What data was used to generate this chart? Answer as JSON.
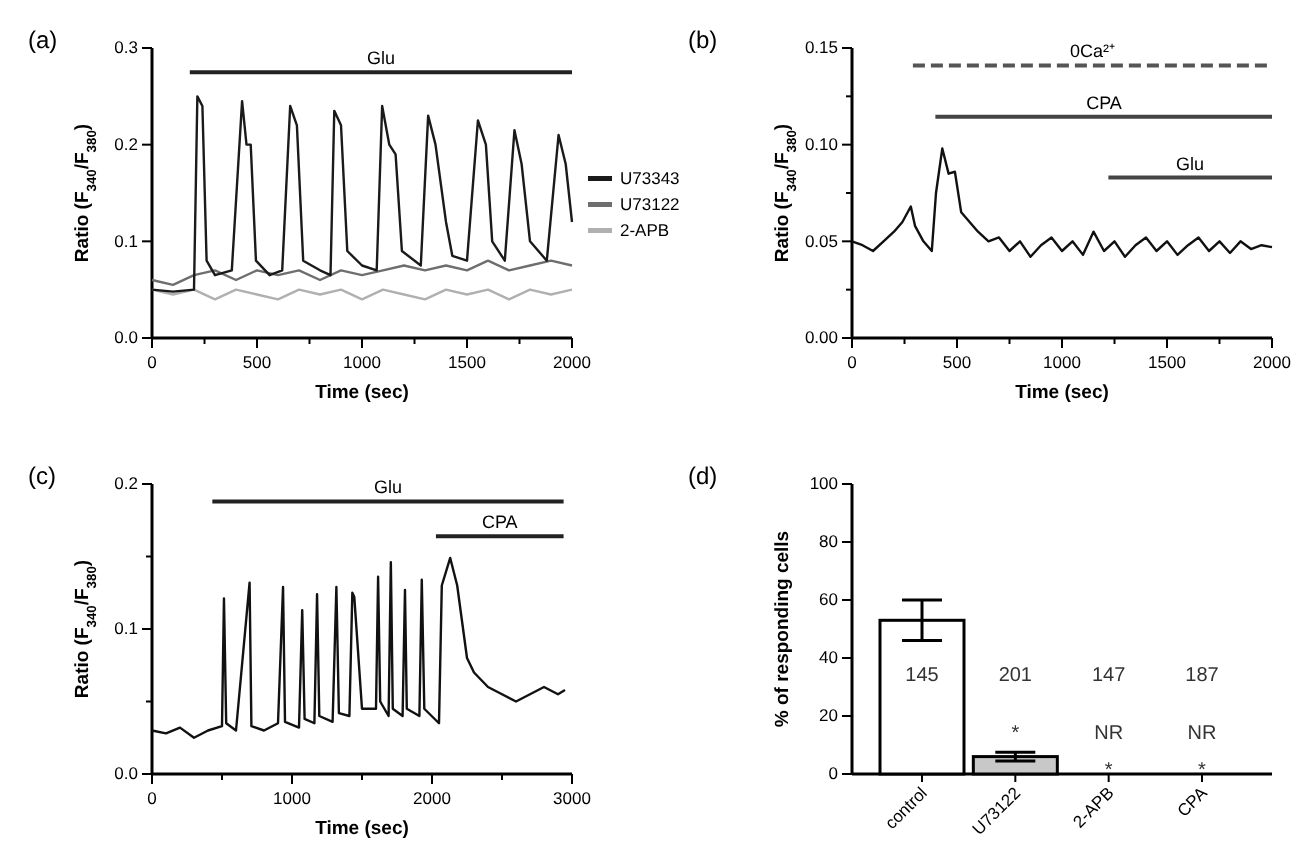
{
  "chart_data": [
    {
      "type": "line",
      "title": "(a)",
      "xlabel": "Time (sec)",
      "ylabel": "Ratio (F$_{340}$/F$_{380}$)",
      "xlim": [
        0,
        2000
      ],
      "ylim": [
        0,
        0.3
      ],
      "xticks": [
        0,
        {
          "value": 250,
          "label": null
        },
        500,
        {
          "value": 750,
          "label": null
        },
        1000,
        {
          "value": 1250,
          "label": null
        },
        1500,
        {
          "value": 1750,
          "label": null
        },
        2000
      ],
      "yticks": [
        {
          "value": 0,
          "label": "0.0"
        },
        0.1,
        0.2,
        0.3
      ],
      "legend": "right",
      "marker": "none",
      "line_style": "solid",
      "annotations": [
        {
          "text": "Glu",
          "x": 1090,
          "y": 0.275
        }
      ],
      "series": [
        {
          "type": "line",
          "color": "#222222",
          "x": [
            180,
            2000
          ],
          "values": [
            0.275,
            0.275
          ]
        },
        {
          "name": "U73343",
          "color": "#1a1a1a",
          "x": [
            0,
            100,
            200,
            216,
            240,
            260,
            300,
            380,
            429,
            450,
            470,
            495,
            560,
            620,
            658,
            690,
            720,
            800,
            850,
            868,
            900,
            930,
            1000,
            1070,
            1096,
            1130,
            1160,
            1190,
            1280,
            1315,
            1350,
            1400,
            1430,
            1500,
            1552,
            1590,
            1620,
            1680,
            1726,
            1760,
            1800,
            1880,
            1936,
            1970,
            2000
          ],
          "values": [
            0.05,
            0.048,
            0.05,
            0.25,
            0.24,
            0.08,
            0.065,
            0.07,
            0.245,
            0.2,
            0.2,
            0.08,
            0.065,
            0.07,
            0.24,
            0.22,
            0.08,
            0.07,
            0.065,
            0.235,
            0.22,
            0.09,
            0.075,
            0.07,
            0.24,
            0.2,
            0.19,
            0.09,
            0.075,
            0.23,
            0.2,
            0.12,
            0.085,
            0.08,
            0.225,
            0.2,
            0.1,
            0.08,
            0.215,
            0.18,
            0.1,
            0.08,
            0.21,
            0.18,
            0.12
          ]
        },
        {
          "name": "U73122",
          "color": "#6e6e6e",
          "x": [
            0,
            100,
            200,
            300,
            400,
            500,
            600,
            700,
            800,
            900,
            1000,
            1100,
            1200,
            1300,
            1400,
            1500,
            1600,
            1700,
            1800,
            1900,
            2000
          ],
          "values": [
            0.06,
            0.055,
            0.065,
            0.07,
            0.06,
            0.07,
            0.065,
            0.07,
            0.06,
            0.07,
            0.065,
            0.07,
            0.075,
            0.07,
            0.075,
            0.07,
            0.08,
            0.07,
            0.075,
            0.08,
            0.075
          ]
        },
        {
          "name": "2-APB",
          "color": "#b0b0b0",
          "x": [
            0,
            100,
            200,
            300,
            400,
            500,
            600,
            700,
            800,
            900,
            1000,
            1100,
            1200,
            1300,
            1400,
            1500,
            1600,
            1700,
            1800,
            1900,
            2000
          ],
          "values": [
            0.05,
            0.045,
            0.05,
            0.04,
            0.05,
            0.045,
            0.04,
            0.05,
            0.045,
            0.05,
            0.04,
            0.05,
            0.045,
            0.04,
            0.05,
            0.045,
            0.05,
            0.04,
            0.05,
            0.045,
            0.05
          ]
        }
      ]
    },
    {
      "type": "line",
      "title": "(b)",
      "xlabel": "Time (sec)",
      "ylabel": "Ratio (F$_{340}$/F$_{380}$)",
      "xlim": [
        0,
        2000
      ],
      "ylim": [
        0,
        0.15
      ],
      "xticks": [
        0,
        {
          "value": 250,
          "label": null
        },
        500,
        {
          "value": 750,
          "label": null
        },
        1000,
        {
          "value": 1250,
          "label": null
        },
        1500,
        {
          "value": 1750,
          "label": null
        },
        2000
      ],
      "yticks": [
        {
          "value": 0,
          "label": "0.00"
        },
        {
          "value": 0.025,
          "label": null
        },
        0.05,
        {
          "value": 0.075,
          "label": null
        },
        {
          "value": 0.1,
          "label": "0.10"
        },
        {
          "value": 0.125,
          "label": null
        },
        0.15
      ],
      "marker": "none",
      "line_style": "solid",
      "annotations": [
        {
          "text": "0Ca²⁺",
          "x": 1145,
          "y": 0.141
        },
        {
          "text": "CPA",
          "x": 1200,
          "y": 0.1145
        },
        {
          "text": "Glu",
          "x": 1610,
          "y": 0.083
        }
      ],
      "series": [
        {
          "type": "line",
          "color": "#555555",
          "line_style": "dashed",
          "x": [
            290,
            2000
          ],
          "values": [
            0.141,
            0.141
          ]
        },
        {
          "type": "line",
          "color": "#444444",
          "x": [
            397,
            2000
          ],
          "values": [
            0.1145,
            0.1145
          ]
        },
        {
          "type": "line",
          "color": "#444444",
          "x": [
            1221,
            2000
          ],
          "values": [
            0.083,
            0.083
          ]
        },
        {
          "color": "#111111",
          "x": [
            0,
            50,
            100,
            150,
            200,
            240,
            280,
            300,
            340,
            380,
            400,
            430,
            460,
            490,
            520,
            560,
            600,
            650,
            700,
            750,
            800,
            850,
            900,
            950,
            1000,
            1050,
            1100,
            1150,
            1200,
            1250,
            1300,
            1350,
            1400,
            1450,
            1500,
            1550,
            1600,
            1650,
            1700,
            1750,
            1800,
            1850,
            1900,
            1950,
            2000
          ],
          "values": [
            0.05,
            0.048,
            0.045,
            0.05,
            0.055,
            0.06,
            0.068,
            0.058,
            0.05,
            0.045,
            0.075,
            0.098,
            0.085,
            0.086,
            0.065,
            0.06,
            0.055,
            0.05,
            0.052,
            0.045,
            0.05,
            0.042,
            0.048,
            0.052,
            0.045,
            0.05,
            0.043,
            0.055,
            0.045,
            0.05,
            0.042,
            0.048,
            0.052,
            0.045,
            0.05,
            0.043,
            0.048,
            0.052,
            0.045,
            0.05,
            0.044,
            0.05,
            0.046,
            0.048,
            0.047
          ]
        }
      ]
    },
    {
      "type": "line",
      "title": "(c)",
      "xlabel": "Time (sec)",
      "ylabel": "Ratio (F$_{340}$/F$_{380}$)",
      "xlim": [
        0,
        3000
      ],
      "ylim": [
        0,
        0.2
      ],
      "xticks": [
        0,
        {
          "value": 500,
          "label": null
        },
        1000,
        {
          "value": 1500,
          "label": null
        },
        2000,
        {
          "value": 2500,
          "label": null
        },
        3000
      ],
      "yticks": [
        {
          "value": 0,
          "label": "0.0"
        },
        {
          "value": 0.05,
          "label": null
        },
        0.1,
        {
          "value": 0.15,
          "label": null
        },
        0.2
      ],
      "marker": "none",
      "line_style": "solid",
      "annotations": [
        {
          "text": "Glu",
          "x": 1685,
          "y": 0.188
        },
        {
          "text": "CPA",
          "x": 2484,
          "y": 0.164
        }
      ],
      "series": [
        {
          "type": "line",
          "color": "#222222",
          "x": [
            431,
            2940
          ],
          "values": [
            0.188,
            0.188
          ]
        },
        {
          "type": "line",
          "color": "#222222",
          "x": [
            2028,
            2940
          ],
          "values": [
            0.164,
            0.164
          ]
        },
        {
          "color": "#111111",
          "x": [
            0,
            100,
            200,
            300,
            400,
            500,
            514,
            530,
            600,
            697,
            710,
            800,
            900,
            936,
            950,
            1050,
            1073,
            1090,
            1160,
            1179,
            1195,
            1290,
            1317,
            1335,
            1410,
            1431,
            1445,
            1500,
            1515,
            1600,
            1615,
            1630,
            1690,
            1706,
            1720,
            1790,
            1807,
            1820,
            1910,
            1927,
            1945,
            2050,
            2070,
            2130,
            2180,
            2250,
            2300,
            2400,
            2500,
            2600,
            2700,
            2800,
            2900,
            2950
          ],
          "values": [
            0.03,
            0.028,
            0.032,
            0.025,
            0.03,
            0.033,
            0.121,
            0.035,
            0.03,
            0.132,
            0.033,
            0.03,
            0.035,
            0.129,
            0.036,
            0.032,
            0.113,
            0.038,
            0.035,
            0.124,
            0.04,
            0.036,
            0.129,
            0.042,
            0.04,
            0.125,
            0.122,
            0.045,
            0.045,
            0.045,
            0.136,
            0.05,
            0.04,
            0.146,
            0.045,
            0.04,
            0.127,
            0.045,
            0.04,
            0.134,
            0.045,
            0.035,
            0.13,
            0.149,
            0.13,
            0.08,
            0.07,
            0.06,
            0.055,
            0.05,
            0.055,
            0.06,
            0.055,
            0.058
          ]
        }
      ]
    },
    {
      "type": "bar",
      "ylabel": "% of responding cells",
      "title": "(d)",
      "categories": [
        "control",
        "U73122",
        "2-APB",
        "CPA"
      ],
      "values": [
        53,
        6,
        0,
        0
      ],
      "colors": [
        "#ffffff",
        "#c8c8c8",
        "#c8c8c8",
        "#c8c8c8"
      ],
      "errors": [
        7,
        1.5,
        null,
        null
      ],
      "ylim": [
        0,
        100
      ],
      "yticks": [
        0,
        20,
        40,
        60,
        80,
        100
      ],
      "annotations": [
        "145",
        "201",
        "147",
        "187",
        "*",
        "NR",
        "NR",
        "*",
        "*"
      ]
    }
  ]
}
